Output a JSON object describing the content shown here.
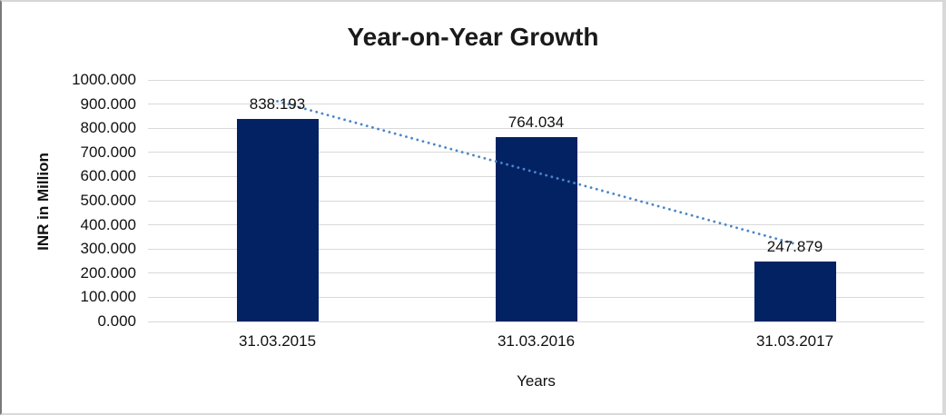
{
  "frame": {
    "background": "#ffffff",
    "border_color_light": "#d9d9d9",
    "border_color_dark": "#7a7a7a"
  },
  "chart_data": {
    "type": "bar",
    "title": "Year-on-Year Growth",
    "categories": [
      "31.03.2015",
      "31.03.2016",
      "31.03.2017"
    ],
    "values": [
      838.193,
      764.034,
      247.879
    ],
    "data_labels": [
      "838.193",
      "764.034",
      "247.879"
    ],
    "xlabel": "Years",
    "ylabel": "INR in Million",
    "ylim": [
      0,
      1000
    ],
    "ytick_step": 100,
    "ytick_labels": [
      "0.000",
      "100.000",
      "200.000",
      "300.000",
      "400.000",
      "500.000",
      "600.000",
      "700.000",
      "800.000",
      "900.000",
      "1000.000"
    ],
    "grid": true,
    "legend": "none",
    "trendline": {
      "type": "linear",
      "style": "dotted",
      "color": "#4A86C8"
    },
    "colors": {
      "bar": "#032264",
      "gridline": "#D9D9D9",
      "axis_text": "#111111",
      "title_text": "#1a1a1a"
    }
  }
}
